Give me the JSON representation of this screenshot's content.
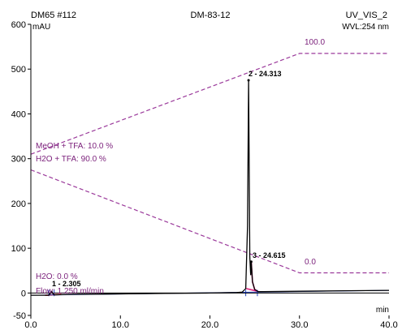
{
  "header": {
    "left": "DM65 #112",
    "center": "DM-83-12",
    "right": "UV_VIS_2"
  },
  "yunit_label": "mAU",
  "wavelength_label": "WVL:254 nm",
  "colors": {
    "trace": "#000000",
    "gradient": "#9b3a9b",
    "baseline": "#1f3fbf",
    "integration": "#e0207a",
    "labels": "#7a1f7a"
  },
  "chart_data": {
    "type": "line",
    "title": "DM-83-12",
    "xlabel": "min",
    "ylabel": "mAU",
    "xlim": [
      0,
      40
    ],
    "ylim": [
      -50,
      600
    ],
    "xticks": [
      "0.0",
      "10.0",
      "20.0",
      "30.0",
      "40.0"
    ],
    "yticks": [
      "-50",
      "0",
      "100",
      "200",
      "300",
      "400",
      "500",
      "600"
    ],
    "grid": false,
    "series": [
      {
        "x": [
          0,
          2.0,
          2.3,
          2.6,
          5,
          10,
          15,
          20,
          23,
          23.6,
          24.0,
          24.2,
          24.313,
          24.45,
          24.55,
          24.615,
          24.75,
          25.0,
          25.4,
          26,
          30,
          35,
          40
        ],
        "y": [
          -5,
          -5,
          2,
          -4,
          -3,
          -2,
          -1,
          0,
          1,
          2,
          10,
          150,
          475,
          80,
          40,
          70,
          25,
          8,
          3,
          3,
          4,
          5,
          6
        ]
      },
      {
        "x": [
          0,
          30,
          40
        ],
        "y": [
          310,
          535,
          535
        ]
      },
      {
        "x": [
          0,
          30,
          40
        ],
        "y": [
          275,
          45,
          45
        ]
      }
    ],
    "peaks": [
      {
        "label": "1 - 2.305",
        "x": 2.305,
        "y": 2
      },
      {
        "label": "2 - 24.313",
        "x": 24.313,
        "y": 475
      },
      {
        "label": "3 - 24.615",
        "x": 24.615,
        "y": 70
      }
    ],
    "gradient_labels": {
      "b_end": "100.0",
      "a_end": "0.0",
      "b_start": "MeOH + TFA: 10.0 %",
      "a_start": "H2O + TFA: 90.0 %",
      "other": "H2O: 0.0 %",
      "flow": "Flow: 1.250 ml/min"
    }
  }
}
